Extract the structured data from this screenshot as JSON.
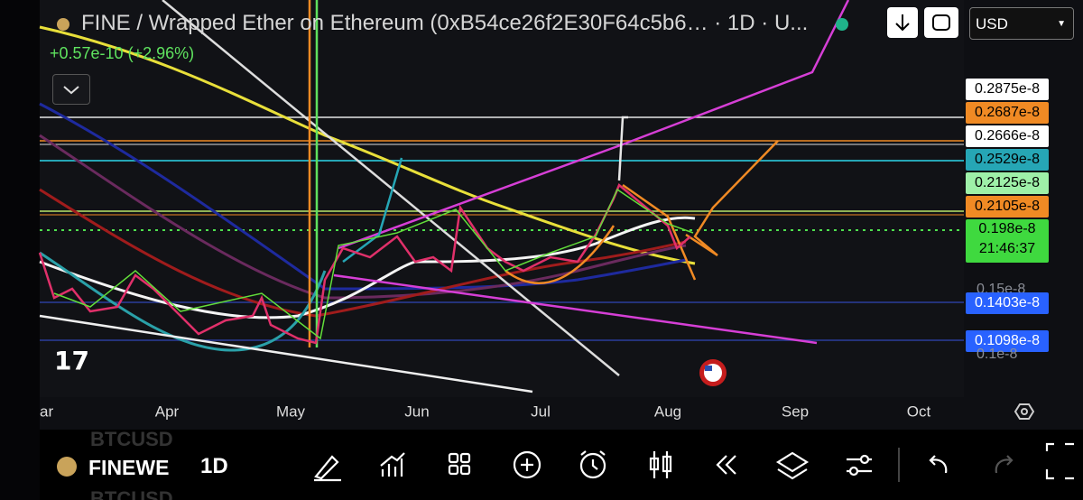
{
  "header": {
    "title": "FINE / Wrapped Ether on Ethereum (0xB54ce26f2E30F64c5b6… · 1D · U...",
    "change": "+0.57e-10 (+2.96%)",
    "currency": "USD"
  },
  "price_labels": [
    "0.2875e-8",
    "0.2687e-8",
    "0.2666e-8",
    "0.2529e-8",
    "0.2125e-8",
    "0.2105e-8",
    "0.1403e-8",
    "0.1098e-8"
  ],
  "last_price": {
    "price": "0.198e-8",
    "countdown": "21:46:37"
  },
  "axis_prices": [
    "0.15e-8",
    "0.1e-8"
  ],
  "x_axis": [
    "ar",
    "Apr",
    "May",
    "Jun",
    "Jul",
    "Aug",
    "Sep",
    "Oct"
  ],
  "toolbar": {
    "symbol": "FINEWE",
    "interval": "1D",
    "ghost_symbol": "BTCUSD"
  }
}
